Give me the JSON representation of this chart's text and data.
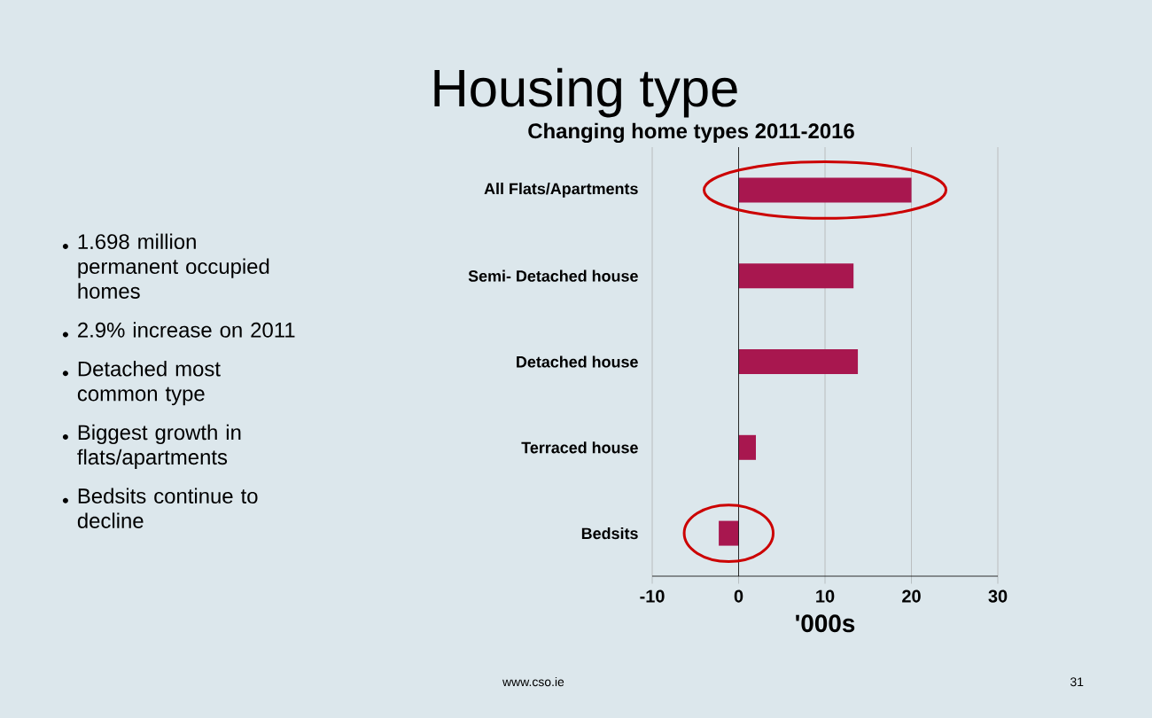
{
  "chart_data": {
    "type": "bar",
    "orientation": "horizontal",
    "title": "Housing type",
    "subtitle": "Changing home types 2011-2016",
    "categories": [
      "All Flats/Apartments",
      "Semi- Detached house",
      "Detached house",
      "Terraced house",
      "Bedsits"
    ],
    "values": [
      20,
      13.3,
      13.8,
      2,
      -2.3
    ],
    "color": "#a8174f",
    "xlim": [
      -10,
      30
    ],
    "xticks": [
      -10,
      0,
      10,
      20,
      30
    ],
    "xlabel": "'000s",
    "grid": "x",
    "annotations": [
      "1.698 million permanent occupied homes",
      "2.9% increase on 2011",
      "Detached most common type",
      "Biggest growth in flats/apartments",
      "Bedsits continue to decline",
      "www.cso.ie",
      "31"
    ]
  }
}
